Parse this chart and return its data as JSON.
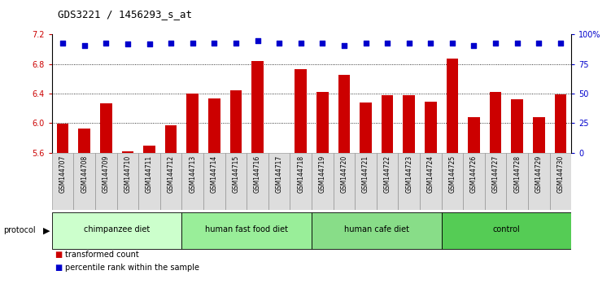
{
  "title": "GDS3221 / 1456293_s_at",
  "samples": [
    "GSM144707",
    "GSM144708",
    "GSM144709",
    "GSM144710",
    "GSM144711",
    "GSM144712",
    "GSM144713",
    "GSM144714",
    "GSM144715",
    "GSM144716",
    "GSM144717",
    "GSM144718",
    "GSM144719",
    "GSM144720",
    "GSM144721",
    "GSM144722",
    "GSM144723",
    "GSM144724",
    "GSM144725",
    "GSM144726",
    "GSM144727",
    "GSM144728",
    "GSM144729",
    "GSM144730"
  ],
  "bar_values": [
    5.99,
    5.93,
    6.27,
    5.62,
    5.69,
    5.97,
    6.4,
    6.33,
    6.45,
    6.84,
    5.58,
    6.73,
    6.42,
    6.65,
    6.28,
    6.38,
    6.38,
    6.29,
    6.87,
    6.08,
    6.42,
    6.32,
    6.08,
    6.39
  ],
  "percentile_values": [
    93,
    91,
    93,
    92,
    92,
    93,
    93,
    93,
    93,
    95,
    93,
    93,
    93,
    91,
    93,
    93,
    93,
    93,
    93,
    91,
    93,
    93,
    93,
    93
  ],
  "groups": [
    {
      "label": "chimpanzee diet",
      "start": 0,
      "end": 6,
      "color": "#ccffcc"
    },
    {
      "label": "human fast food diet",
      "start": 6,
      "end": 12,
      "color": "#99ee99"
    },
    {
      "label": "human cafe diet",
      "start": 12,
      "end": 18,
      "color": "#88dd88"
    },
    {
      "label": "control",
      "start": 18,
      "end": 24,
      "color": "#55cc55"
    }
  ],
  "bar_color": "#cc0000",
  "dot_color": "#0000cc",
  "ylim_left": [
    5.6,
    7.2
  ],
  "ylim_right": [
    0,
    100
  ],
  "yticks_left": [
    5.6,
    6.0,
    6.4,
    6.8,
    7.2
  ],
  "yticks_right": [
    0,
    25,
    50,
    75,
    100
  ],
  "grid_values": [
    6.0,
    6.4,
    6.8
  ],
  "legend_items": [
    {
      "label": "transformed count",
      "color": "#cc0000"
    },
    {
      "label": "percentile rank within the sample",
      "color": "#0000cc"
    }
  ],
  "protocol_label": "protocol",
  "background_color": "#ffffff",
  "label_bg_color": "#dddddd"
}
